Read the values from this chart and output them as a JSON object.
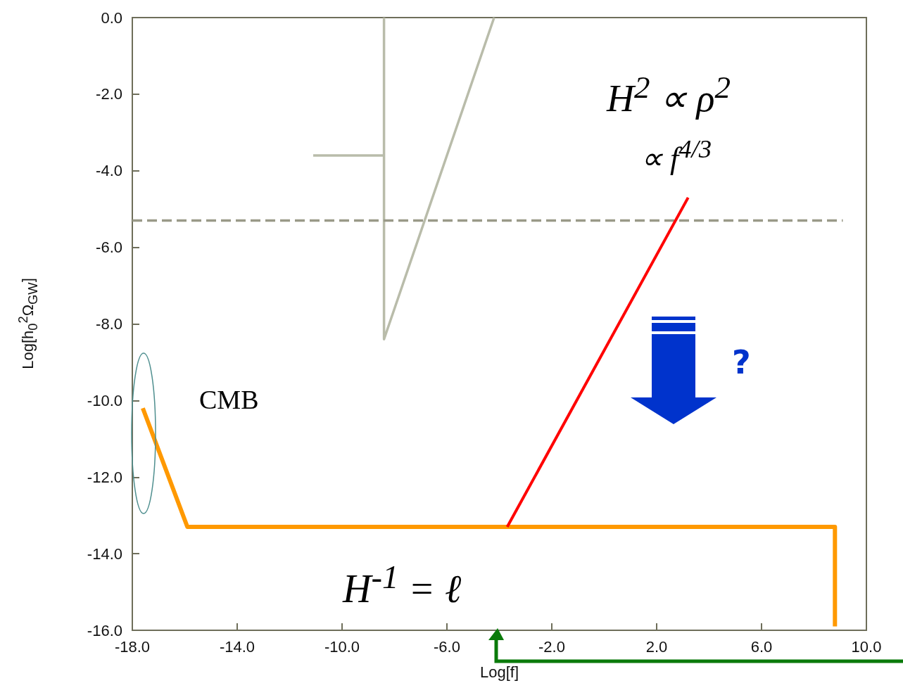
{
  "chart_data": {
    "type": "line",
    "xlabel": "Log[f]",
    "ylabel": "Log[h$_{0}$$^{2}$Ω$_{GW}$]",
    "xlim": [
      -18,
      10
    ],
    "ylim": [
      -16,
      0
    ],
    "xticks": [
      {
        "value": -18,
        "label": "-18.0"
      },
      {
        "value": -14,
        "label": "-14.0"
      },
      {
        "value": -10,
        "label": "-10.0"
      },
      {
        "value": -6,
        "label": "-6.0"
      },
      {
        "value": -2,
        "label": "-2.0"
      },
      {
        "value": 2,
        "label": "2.0"
      },
      {
        "value": 6,
        "label": "6.0"
      },
      {
        "value": 10,
        "label": "10.0"
      }
    ],
    "yticks": [
      {
        "value": -16,
        "label": "-16.0"
      },
      {
        "value": -14,
        "label": "-14.0"
      },
      {
        "value": -12,
        "label": "-12.0"
      },
      {
        "value": -10,
        "label": "-10.0"
      },
      {
        "value": -8,
        "label": "-8.0"
      },
      {
        "value": -6,
        "label": "-6.0"
      },
      {
        "value": -4,
        "label": "-4.0"
      },
      {
        "value": -2,
        "label": "-2.0"
      },
      {
        "value": 0,
        "label": "0.0"
      }
    ],
    "grid": false,
    "marker": "none",
    "series": [
      {
        "color": "#b9bcaa",
        "x": [
          -11.1,
          -8.4
        ],
        "values": [
          -3.6,
          -3.6
        ]
      },
      {
        "color": "#b9bcaa",
        "x": [
          -8.4,
          -8.4,
          -4.2
        ],
        "values": [
          0,
          -8.4,
          0
        ]
      },
      {
        "color": "#9a9a88",
        "line_style": "dashed",
        "x": [
          -18,
          9.1
        ],
        "values": [
          -5.3,
          -5.3
        ]
      },
      {
        "color": "#ff9900",
        "x": [
          -17.6,
          -15.9,
          8.8,
          8.8
        ],
        "values": [
          -10.2,
          -13.3,
          -13.3,
          -15.9
        ]
      },
      {
        "color": "#ff0000",
        "x": [
          -3.7,
          3.2
        ],
        "values": [
          -13.3,
          -4.7
        ]
      }
    ],
    "annotations": [
      "CMB",
      "H$^{2}$ ∝ ρ$^{2}$",
      "∝ f$^{4/3}$",
      "H$^{-1}$ = ℓ",
      "?"
    ]
  }
}
